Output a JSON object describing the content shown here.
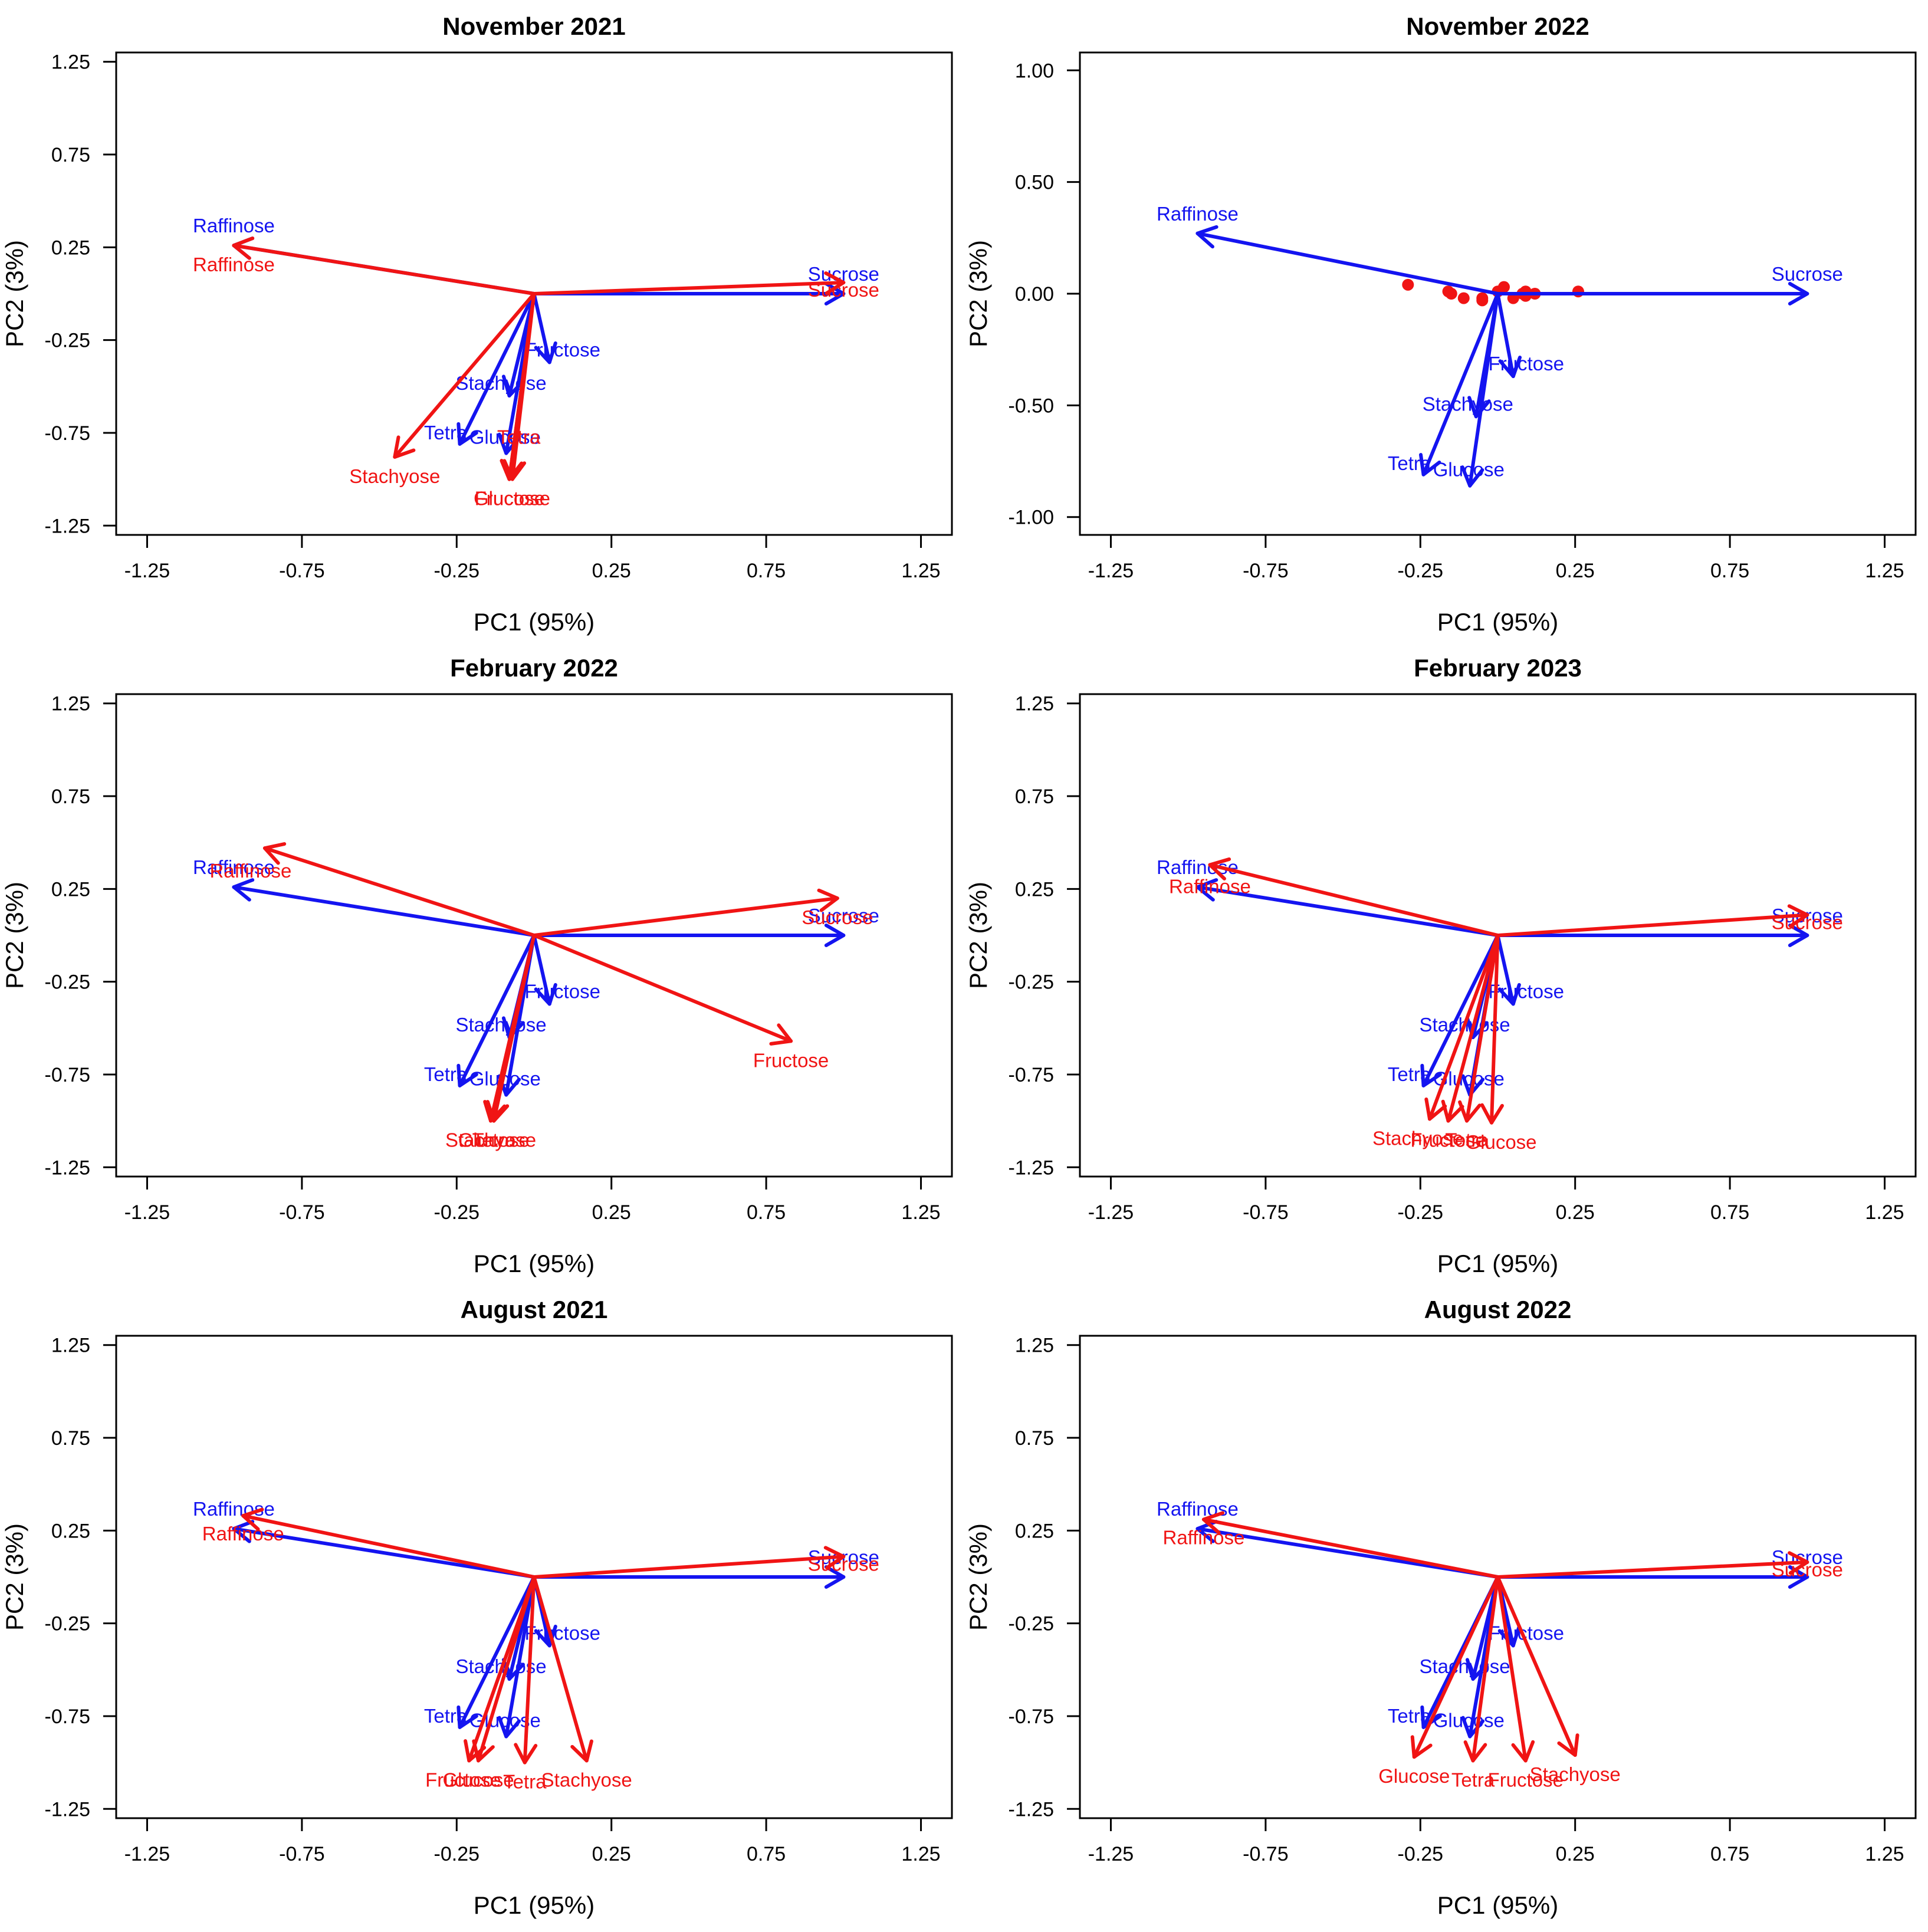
{
  "colors": {
    "blue": "#1414f0",
    "red": "#f01414"
  },
  "chart_data": [
    {
      "type": "scatter",
      "title": "November 2021",
      "xlabel": "PC1 (95%)",
      "ylabel": "PC2 (3%)",
      "xlim": [
        -1.35,
        1.35
      ],
      "ylim": [
        -1.3,
        1.3
      ],
      "xticks": [
        "-1.25",
        "-0.75",
        "-0.25",
        "0.25",
        "0.75",
        "1.25"
      ],
      "yticks": [
        "-1.25",
        "-0.75",
        "-0.25",
        "0.25",
        "0.75",
        "1.25"
      ],
      "blue_arrows": [
        {
          "name": "Raffinose",
          "x": -0.97,
          "y": 0.26,
          "label": "Raffinose"
        },
        {
          "name": "Sucrose",
          "x": 1.0,
          "y": 0.0,
          "label": "Sucrose"
        },
        {
          "name": "Fructose",
          "x": 0.05,
          "y": -0.37,
          "label": "Fructose"
        },
        {
          "name": "Stachyose",
          "x": -0.08,
          "y": -0.55,
          "label": "Stachyose"
        },
        {
          "name": "Tetra",
          "x": -0.24,
          "y": -0.81,
          "label": "Tetra"
        },
        {
          "name": "Glucose",
          "x": -0.09,
          "y": -0.86,
          "label": "Glucose"
        }
      ],
      "red_arrows": [
        {
          "name": "Raffinose",
          "x": -0.97,
          "y": 0.26,
          "label": "Raffinose"
        },
        {
          "name": "Sucrose",
          "x": 1.0,
          "y": 0.06,
          "label": "Sucrose"
        },
        {
          "name": "Tetra",
          "x": -0.08,
          "y": -1.0,
          "label": "Tetra"
        },
        {
          "name": "Stachyose",
          "x": -0.45,
          "y": -0.88,
          "label": "Stachyose"
        },
        {
          "name": "Glucose",
          "x": -0.08,
          "y": -1.0,
          "label": "Glucose"
        },
        {
          "name": "Fructose",
          "x": -0.07,
          "y": -1.0,
          "label": "Fructose"
        }
      ],
      "points": []
    },
    {
      "type": "scatter",
      "title": "November 2022",
      "xlabel": "PC1 (95%)",
      "ylabel": "PC2 (3%)",
      "xlim": [
        -1.35,
        1.35
      ],
      "ylim": [
        -1.08,
        1.08
      ],
      "xticks": [
        "-1.25",
        "-0.75",
        "-0.25",
        "0.25",
        "0.75",
        "1.25"
      ],
      "yticks": [
        "-1.00",
        "-0.50",
        "0.00",
        "0.50",
        "1.00"
      ],
      "blue_arrows": [
        {
          "name": "Raffinose",
          "x": -0.97,
          "y": 0.27,
          "label": "Raffinose"
        },
        {
          "name": "Sucrose",
          "x": 1.0,
          "y": 0.0,
          "label": "Sucrose"
        },
        {
          "name": "Fructose",
          "x": 0.05,
          "y": -0.37,
          "label": "Fructose"
        },
        {
          "name": "Stachyose",
          "x": -0.07,
          "y": -0.55,
          "label": "Stachyose"
        },
        {
          "name": "Tetra",
          "x": -0.24,
          "y": -0.81,
          "label": "Tetra"
        },
        {
          "name": "Glucose",
          "x": -0.09,
          "y": -0.86,
          "label": "Glucose"
        }
      ],
      "red_arrows": [],
      "points": [
        {
          "x": -0.29,
          "y": 0.04
        },
        {
          "x": -0.16,
          "y": 0.01
        },
        {
          "x": -0.15,
          "y": 0.0
        },
        {
          "x": -0.11,
          "y": -0.02
        },
        {
          "x": -0.05,
          "y": -0.02
        },
        {
          "x": -0.05,
          "y": -0.03
        },
        {
          "x": 0.0,
          "y": 0.01
        },
        {
          "x": 0.02,
          "y": 0.03
        },
        {
          "x": 0.05,
          "y": -0.02
        },
        {
          "x": 0.08,
          "y": 0.0
        },
        {
          "x": 0.09,
          "y": 0.01
        },
        {
          "x": 0.09,
          "y": -0.01
        },
        {
          "x": 0.12,
          "y": 0.0
        },
        {
          "x": 0.26,
          "y": 0.01
        }
      ]
    },
    {
      "type": "scatter",
      "title": "February 2022",
      "xlabel": "PC1 (95%)",
      "ylabel": "PC2 (3%)",
      "xlim": [
        -1.35,
        1.35
      ],
      "ylim": [
        -1.3,
        1.3
      ],
      "xticks": [
        "-1.25",
        "-0.75",
        "-0.25",
        "0.25",
        "0.75",
        "1.25"
      ],
      "yticks": [
        "-1.25",
        "-0.75",
        "-0.25",
        "0.25",
        "0.75",
        "1.25"
      ],
      "blue_arrows": [
        {
          "name": "Raffinose",
          "x": -0.97,
          "y": 0.26,
          "label": "Raffinose"
        },
        {
          "name": "Sucrose",
          "x": 1.0,
          "y": 0.0,
          "label": "Sucrose"
        },
        {
          "name": "Fructose",
          "x": 0.05,
          "y": -0.37,
          "label": "Fructose"
        },
        {
          "name": "Stachyose",
          "x": -0.08,
          "y": -0.55,
          "label": "Stachyose"
        },
        {
          "name": "Tetra",
          "x": -0.24,
          "y": -0.81,
          "label": "Tetra"
        },
        {
          "name": "Glucose",
          "x": -0.09,
          "y": -0.86,
          "label": "Glucose"
        }
      ],
      "red_arrows": [
        {
          "name": "Raffinose",
          "x": -0.87,
          "y": 0.47,
          "label": "Raffinose"
        },
        {
          "name": "Sucrose",
          "x": 0.98,
          "y": 0.2,
          "label": "Sucrose"
        },
        {
          "name": "Fructose",
          "x": 0.83,
          "y": -0.57,
          "label": "Fructose"
        },
        {
          "name": "Stachyose",
          "x": -0.14,
          "y": -1.0,
          "label": "Stachyose"
        },
        {
          "name": "Glucose",
          "x": -0.13,
          "y": -1.0,
          "label": "Glucose"
        },
        {
          "name": "Tetra",
          "x": -0.13,
          "y": -1.0,
          "label": "Tetra"
        }
      ],
      "points": []
    },
    {
      "type": "scatter",
      "title": "February 2023",
      "xlabel": "PC1 (95%)",
      "ylabel": "PC2 (3%)",
      "xlim": [
        -1.35,
        1.35
      ],
      "ylim": [
        -1.3,
        1.3
      ],
      "xticks": [
        "-1.25",
        "-0.75",
        "-0.25",
        "0.25",
        "0.75",
        "1.25"
      ],
      "yticks": [
        "-1.25",
        "-0.75",
        "-0.25",
        "0.25",
        "0.75",
        "1.25"
      ],
      "blue_arrows": [
        {
          "name": "Raffinose",
          "x": -0.97,
          "y": 0.26,
          "label": "Raffinose"
        },
        {
          "name": "Sucrose",
          "x": 1.0,
          "y": 0.0,
          "label": "Sucrose"
        },
        {
          "name": "Fructose",
          "x": 0.05,
          "y": -0.37,
          "label": "Fructose"
        },
        {
          "name": "Stachyose",
          "x": -0.08,
          "y": -0.55,
          "label": "Stachyose"
        },
        {
          "name": "Tetra",
          "x": -0.24,
          "y": -0.81,
          "label": "Tetra"
        },
        {
          "name": "Glucose",
          "x": -0.09,
          "y": -0.86,
          "label": "Glucose"
        }
      ],
      "red_arrows": [
        {
          "name": "Raffinose",
          "x": -0.93,
          "y": 0.38,
          "label": "Raffinose"
        },
        {
          "name": "Sucrose",
          "x": 1.0,
          "y": 0.11,
          "label": "Sucrose"
        },
        {
          "name": "Stachyose",
          "x": -0.22,
          "y": -0.99,
          "label": "Stachyose"
        },
        {
          "name": "Fructose",
          "x": -0.16,
          "y": -1.0,
          "label": "Fructose"
        },
        {
          "name": "Tetra",
          "x": -0.1,
          "y": -1.0,
          "label": "Tetra"
        },
        {
          "name": "Glucose",
          "x": -0.02,
          "y": -1.01,
          "label": "Glucose"
        }
      ],
      "points": []
    },
    {
      "type": "scatter",
      "title": "August 2021",
      "xlabel": "PC1 (95%)",
      "ylabel": "PC2 (3%)",
      "xlim": [
        -1.35,
        1.35
      ],
      "ylim": [
        -1.3,
        1.3
      ],
      "xticks": [
        "-1.25",
        "-0.75",
        "-0.25",
        "0.25",
        "0.75",
        "1.25"
      ],
      "yticks": [
        "-1.25",
        "-0.75",
        "-0.25",
        "0.25",
        "0.75",
        "1.25"
      ],
      "blue_arrows": [
        {
          "name": "Raffinose",
          "x": -0.97,
          "y": 0.26,
          "label": "Raffinose"
        },
        {
          "name": "Sucrose",
          "x": 1.0,
          "y": 0.0,
          "label": "Sucrose"
        },
        {
          "name": "Fructose",
          "x": 0.05,
          "y": -0.37,
          "label": "Fructose"
        },
        {
          "name": "Stachyose",
          "x": -0.08,
          "y": -0.55,
          "label": "Stachyose"
        },
        {
          "name": "Tetra",
          "x": -0.24,
          "y": -0.81,
          "label": "Tetra"
        },
        {
          "name": "Glucose",
          "x": -0.09,
          "y": -0.86,
          "label": "Glucose"
        }
      ],
      "red_arrows": [
        {
          "name": "Raffinose",
          "x": -0.94,
          "y": 0.33,
          "label": "Raffinose"
        },
        {
          "name": "Sucrose",
          "x": 1.0,
          "y": 0.11,
          "label": "Sucrose"
        },
        {
          "name": "Fructose",
          "x": -0.21,
          "y": -0.99,
          "label": "Fructose"
        },
        {
          "name": "Glucose",
          "x": -0.18,
          "y": -0.99,
          "label": "Glucose"
        },
        {
          "name": "Tetra",
          "x": -0.03,
          "y": -1.0,
          "label": "Tetra"
        },
        {
          "name": "Stachyose",
          "x": 0.17,
          "y": -0.99,
          "label": "Stachyose"
        }
      ],
      "points": []
    },
    {
      "type": "scatter",
      "title": "August 2022",
      "xlabel": "PC1 (95%)",
      "ylabel": "PC2 (3%)",
      "xlim": [
        -1.35,
        1.35
      ],
      "ylim": [
        -1.3,
        1.3
      ],
      "xticks": [
        "-1.25",
        "-0.75",
        "-0.25",
        "0.25",
        "0.75",
        "1.25"
      ],
      "yticks": [
        "-1.25",
        "-0.75",
        "-0.25",
        "0.25",
        "0.75",
        "1.25"
      ],
      "blue_arrows": [
        {
          "name": "Raffinose",
          "x": -0.97,
          "y": 0.26,
          "label": "Raffinose"
        },
        {
          "name": "Sucrose",
          "x": 1.0,
          "y": 0.0,
          "label": "Sucrose"
        },
        {
          "name": "Fructose",
          "x": 0.05,
          "y": -0.37,
          "label": "Fructose"
        },
        {
          "name": "Stachyose",
          "x": -0.08,
          "y": -0.55,
          "label": "Stachyose"
        },
        {
          "name": "Tetra",
          "x": -0.24,
          "y": -0.81,
          "label": "Tetra"
        },
        {
          "name": "Glucose",
          "x": -0.09,
          "y": -0.86,
          "label": "Glucose"
        }
      ],
      "red_arrows": [
        {
          "name": "Raffinose",
          "x": -0.95,
          "y": 0.31,
          "label": "Raffinose"
        },
        {
          "name": "Sucrose",
          "x": 1.0,
          "y": 0.08,
          "label": "Sucrose"
        },
        {
          "name": "Glucose",
          "x": -0.27,
          "y": -0.97,
          "label": "Glucose"
        },
        {
          "name": "Tetra",
          "x": -0.08,
          "y": -0.99,
          "label": "Tetra"
        },
        {
          "name": "Fructose",
          "x": 0.09,
          "y": -0.99,
          "label": "Fructose"
        },
        {
          "name": "Stachyose",
          "x": 0.25,
          "y": -0.96,
          "label": "Stachyose"
        }
      ],
      "points": []
    }
  ]
}
